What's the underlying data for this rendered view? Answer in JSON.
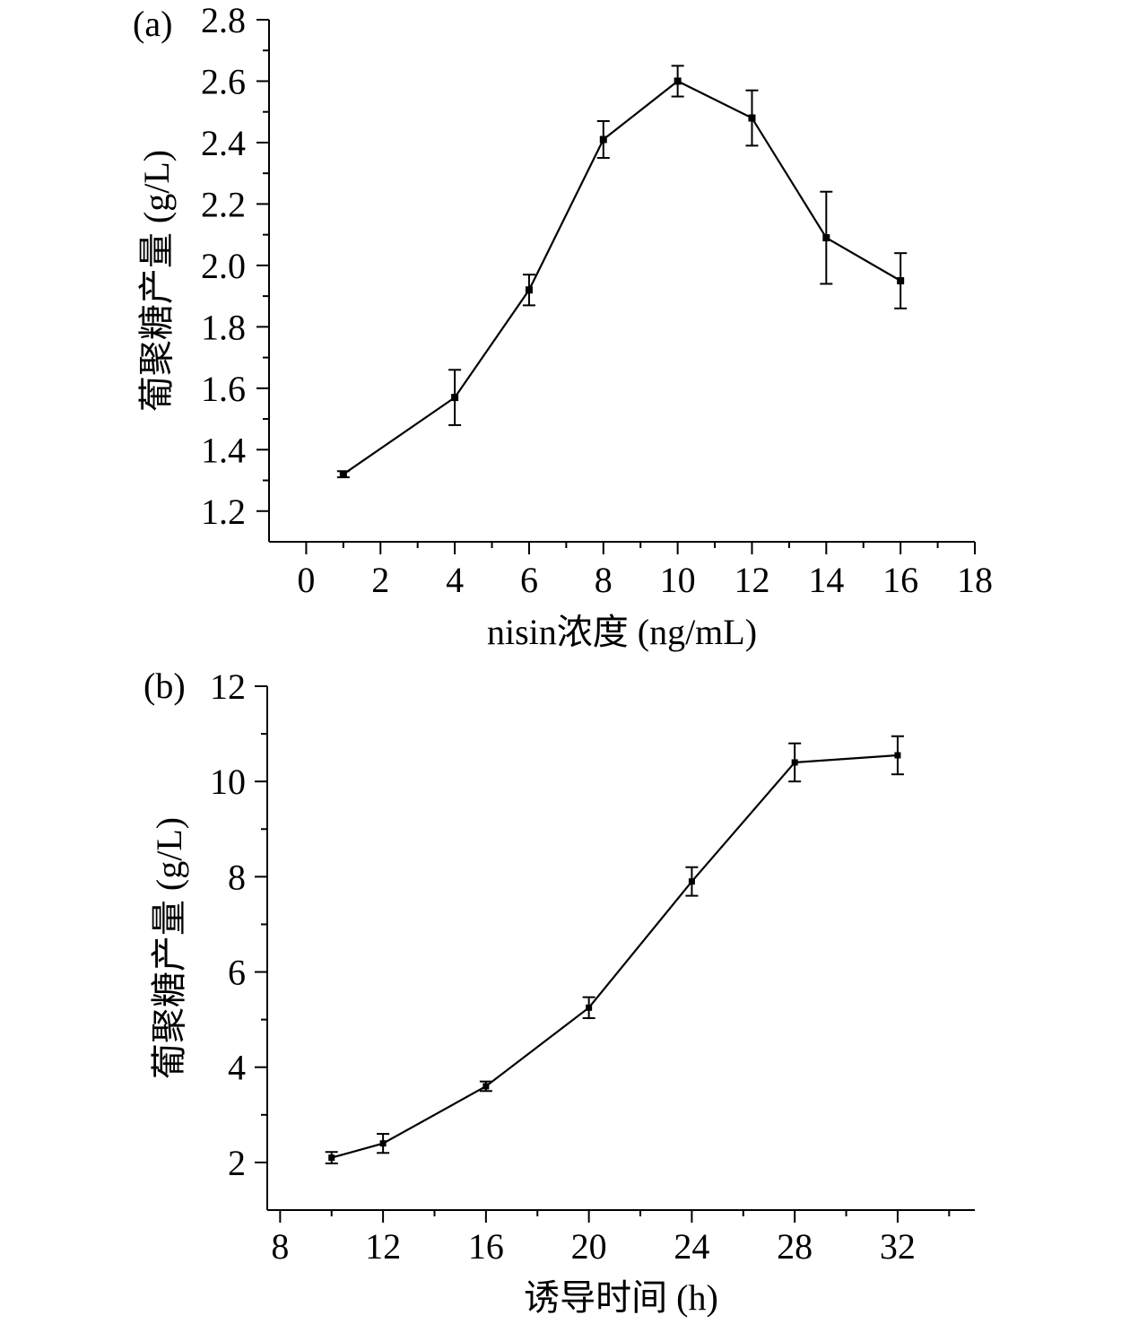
{
  "chart_data": [
    {
      "type": "line",
      "panel_label": "(a)",
      "title": "",
      "xlabel": "nisin浓度 (ng/mL)",
      "ylabel": "葡聚糖产量 (g/L)",
      "xlim": [
        -1,
        18
      ],
      "ylim": [
        1.1,
        2.8
      ],
      "xticks": [
        0,
        2,
        4,
        6,
        8,
        10,
        12,
        14,
        16,
        18
      ],
      "xtick_labels": [
        "0",
        "2",
        "4",
        "6",
        "8",
        "10",
        "12",
        "14",
        "16",
        "18"
      ],
      "yticks": [
        1.2,
        1.4,
        1.6,
        1.8,
        2.0,
        2.2,
        2.4,
        2.6,
        2.8
      ],
      "ytick_labels": [
        "1.2",
        "1.4",
        "1.6",
        "1.8",
        "2.0",
        "2.2",
        "2.4",
        "2.6",
        "2.8"
      ],
      "x": [
        1,
        4,
        6,
        8,
        10,
        12,
        14,
        16
      ],
      "y": [
        1.32,
        1.57,
        1.92,
        2.41,
        2.6,
        2.48,
        2.09,
        1.95
      ],
      "error": [
        0.01,
        0.09,
        0.05,
        0.06,
        0.05,
        0.09,
        0.15,
        0.09
      ]
    },
    {
      "type": "line",
      "panel_label": "(b)",
      "title": "",
      "xlabel": "诱导时间 (h)",
      "ylabel": "葡聚糖产量 (g/L)",
      "xlim": [
        7.5,
        35
      ],
      "ylim": [
        1,
        12
      ],
      "xticks": [
        8,
        12,
        16,
        20,
        24,
        28,
        32
      ],
      "xtick_labels": [
        "8",
        "12",
        "16",
        "20",
        "24",
        "28",
        "32"
      ],
      "yticks": [
        2,
        4,
        6,
        8,
        10,
        12
      ],
      "ytick_labels": [
        "2",
        "4",
        "6",
        "8",
        "10",
        "12"
      ],
      "x": [
        10,
        12,
        16,
        20,
        24,
        28,
        32
      ],
      "y": [
        2.1,
        2.4,
        3.6,
        5.25,
        7.9,
        10.4,
        10.55
      ],
      "error": [
        0.12,
        0.2,
        0.1,
        0.22,
        0.3,
        0.4,
        0.4
      ]
    }
  ]
}
